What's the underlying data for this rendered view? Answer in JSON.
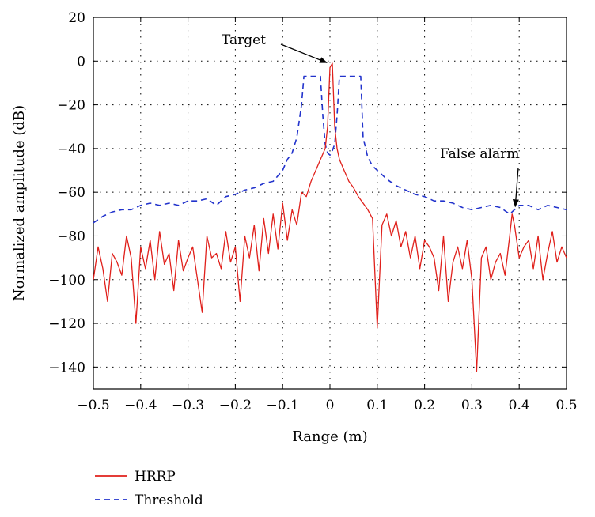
{
  "chart_data": {
    "type": "line",
    "xlabel": "Range (m)",
    "ylabel": "Normalized amplitude (dB)",
    "xlim": [
      -0.5,
      0.5
    ],
    "ylim": [
      -150,
      20
    ],
    "xticks": [
      -0.5,
      -0.4,
      -0.3,
      -0.2,
      -0.1,
      0,
      0.1,
      0.2,
      0.3,
      0.4,
      0.5
    ],
    "yticks": [
      20,
      0,
      -20,
      -40,
      -60,
      -80,
      -100,
      -120,
      -140
    ],
    "xtick_labels": [
      "−0.5",
      "−0.4",
      "−0.3",
      "−0.2",
      "−0.1",
      "0",
      "0.1",
      "0.2",
      "0.3",
      "0.4",
      "0.5"
    ],
    "ytick_labels": [
      "20",
      "0",
      "−20",
      "−40",
      "−60",
      "−80",
      "−100",
      "−120",
      "−140"
    ],
    "grid": true,
    "grid_style": "dotted",
    "legend_position": "bottom-left, below plot",
    "colors": {
      "hrrp": "#e0201b",
      "threshold": "#2233cc"
    },
    "annotations": [
      {
        "text": "Target",
        "x": 0.0,
        "y": 0
      },
      {
        "text": "False alarm",
        "x": 0.385,
        "y": -68
      }
    ],
    "series": [
      {
        "name": "HRRP",
        "style": "solid",
        "x": [
          -0.5,
          -0.49,
          -0.48,
          -0.47,
          -0.46,
          -0.45,
          -0.44,
          -0.43,
          -0.42,
          -0.41,
          -0.4,
          -0.39,
          -0.38,
          -0.37,
          -0.36,
          -0.35,
          -0.34,
          -0.33,
          -0.32,
          -0.31,
          -0.3,
          -0.29,
          -0.28,
          -0.27,
          -0.26,
          -0.25,
          -0.24,
          -0.23,
          -0.22,
          -0.21,
          -0.2,
          -0.19,
          -0.18,
          -0.17,
          -0.16,
          -0.15,
          -0.14,
          -0.13,
          -0.12,
          -0.11,
          -0.1,
          -0.09,
          -0.08,
          -0.07,
          -0.06,
          -0.05,
          -0.04,
          -0.03,
          -0.02,
          -0.01,
          -0.005,
          0,
          0.005,
          0.01,
          0.015,
          0.02,
          0.03,
          0.04,
          0.05,
          0.06,
          0.07,
          0.08,
          0.09,
          0.1,
          0.11,
          0.12,
          0.13,
          0.14,
          0.15,
          0.16,
          0.17,
          0.18,
          0.19,
          0.2,
          0.21,
          0.22,
          0.23,
          0.24,
          0.25,
          0.26,
          0.27,
          0.28,
          0.29,
          0.3,
          0.31,
          0.32,
          0.33,
          0.34,
          0.35,
          0.36,
          0.37,
          0.38,
          0.385,
          0.39,
          0.4,
          0.41,
          0.42,
          0.43,
          0.44,
          0.45,
          0.46,
          0.47,
          0.48,
          0.49,
          0.5
        ],
        "values": [
          -100,
          -85,
          -95,
          -110,
          -88,
          -92,
          -98,
          -80,
          -90,
          -120,
          -85,
          -95,
          -82,
          -100,
          -78,
          -93,
          -88,
          -105,
          -82,
          -96,
          -90,
          -85,
          -100,
          -115,
          -80,
          -90,
          -88,
          -95,
          -78,
          -92,
          -85,
          -110,
          -80,
          -90,
          -75,
          -96,
          -72,
          -88,
          -70,
          -86,
          -65,
          -82,
          -68,
          -75,
          -60,
          -62,
          -55,
          -50,
          -45,
          -40,
          -30,
          -3,
          -1,
          -30,
          -40,
          -45,
          -50,
          -55,
          -58,
          -62,
          -65,
          -68,
          -72,
          -122,
          -75,
          -70,
          -80,
          -73,
          -85,
          -78,
          -90,
          -80,
          -95,
          -82,
          -85,
          -90,
          -105,
          -80,
          -110,
          -92,
          -85,
          -95,
          -82,
          -100,
          -142,
          -90,
          -85,
          -100,
          -92,
          -88,
          -98,
          -80,
          -70,
          -75,
          -90,
          -85,
          -82,
          -95,
          -80,
          -100,
          -88,
          -78,
          -92,
          -85,
          -90
        ]
      },
      {
        "name": "Threshold",
        "style": "dashed",
        "x": [
          -0.5,
          -0.48,
          -0.46,
          -0.44,
          -0.42,
          -0.4,
          -0.38,
          -0.36,
          -0.34,
          -0.32,
          -0.3,
          -0.28,
          -0.26,
          -0.24,
          -0.22,
          -0.2,
          -0.18,
          -0.16,
          -0.14,
          -0.12,
          -0.1,
          -0.09,
          -0.08,
          -0.07,
          -0.06,
          -0.055,
          -0.05,
          -0.04,
          -0.03,
          -0.02,
          -0.015,
          -0.01,
          -0.005,
          0,
          0.005,
          0.01,
          0.015,
          0.02,
          0.03,
          0.04,
          0.05,
          0.06,
          0.065,
          0.07,
          0.08,
          0.09,
          0.1,
          0.12,
          0.14,
          0.16,
          0.18,
          0.2,
          0.22,
          0.24,
          0.26,
          0.28,
          0.3,
          0.32,
          0.34,
          0.36,
          0.38,
          0.4,
          0.42,
          0.44,
          0.46,
          0.48,
          0.5
        ],
        "values": [
          -74,
          -71,
          -69,
          -68,
          -68,
          -66,
          -65,
          -66,
          -65,
          -66,
          -64,
          -64,
          -63,
          -66,
          -62,
          -61,
          -59,
          -58,
          -56,
          -55,
          -50,
          -45,
          -42,
          -35,
          -20,
          -7,
          -7,
          -7,
          -7,
          -7,
          -25,
          -38,
          -42,
          -43,
          -41,
          -38,
          -25,
          -7,
          -7,
          -7,
          -7,
          -7,
          -7,
          -35,
          -44,
          -48,
          -50,
          -54,
          -57,
          -59,
          -61,
          -62,
          -64,
          -64,
          -65,
          -67,
          -68,
          -67,
          -66,
          -67,
          -70,
          -66,
          -66,
          -68,
          -66,
          -67,
          -68
        ]
      }
    ]
  }
}
